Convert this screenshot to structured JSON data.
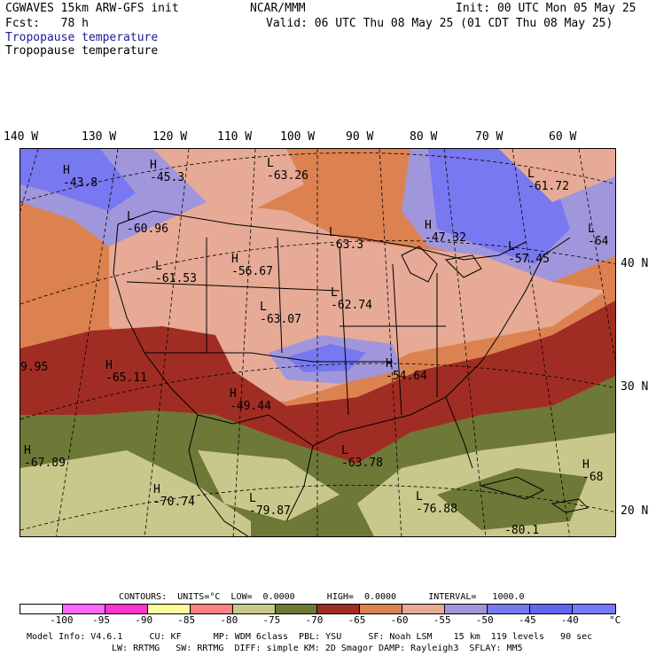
{
  "header": {
    "model": "CGWAVES 15km ARW-GFS init",
    "forecast": "Fcst:   78 h",
    "org": "NCAR/MMM",
    "init": "Init: 00 UTC Mon 05 May 25",
    "valid": "Valid: 06 UTC Thu 08 May 25 (01 CDT Thu 08 May 25)",
    "field_title_1": "Tropopause temperature",
    "field_title_2": "Tropopause temperature"
  },
  "axes": {
    "longitudes": [
      "140 W",
      "130 W",
      "120 W",
      "110 W",
      "100 W",
      "90 W",
      "80 W",
      "70 W",
      "60 W"
    ],
    "latitudes": [
      "40 N",
      "30 N",
      "20 N"
    ]
  },
  "map_labels": [
    {
      "kind": "H",
      "value": "-43.8"
    },
    {
      "kind": "H",
      "value": "-45.3"
    },
    {
      "kind": "L",
      "value": "-63.26"
    },
    {
      "kind": "L",
      "value": "-61.72"
    },
    {
      "kind": "L",
      "value": "-60.96"
    },
    {
      "kind": "L",
      "value": "-63.3"
    },
    {
      "kind": "H",
      "value": "-47.32"
    },
    {
      "kind": "L",
      "value": "-64"
    },
    {
      "kind": "L",
      "value": "-57.45"
    },
    {
      "kind": "L",
      "value": "-61.53"
    },
    {
      "kind": "H",
      "value": "-56.67"
    },
    {
      "kind": "L",
      "value": "-62.74"
    },
    {
      "kind": "L",
      "value": "-63.07"
    },
    {
      "kind": "",
      "value": "9.95"
    },
    {
      "kind": "H",
      "value": "-65.11"
    },
    {
      "kind": "H",
      "value": "-54.64"
    },
    {
      "kind": "H",
      "value": "-49.44"
    },
    {
      "kind": "H",
      "value": "-67.89"
    },
    {
      "kind": "L",
      "value": "-63.78"
    },
    {
      "kind": "H",
      "value": "-68"
    },
    {
      "kind": "H",
      "value": "-70.74"
    },
    {
      "kind": "L",
      "value": "-79.87"
    },
    {
      "kind": "L",
      "value": "-76.88"
    },
    {
      "kind": "",
      "value": "-80.1"
    }
  ],
  "contours": {
    "text": "CONTOURS:  UNITS=°C  LOW=  0.0000      HIGH=  0.0000      INTERVAL=   1000.0"
  },
  "colorbar": {
    "colors": [
      "#ffffff",
      "#ff66ff",
      "#ff33cc",
      "#ffff99",
      "#ff8080",
      "#c8c88c",
      "#6e7837",
      "#a02d23",
      "#dc8250",
      "#e6aa96",
      "#a096dc",
      "#7878f0",
      "#6464f5",
      "#7878ff"
    ],
    "ticks": [
      "-100",
      "-95",
      "-90",
      "-85",
      "-80",
      "-75",
      "-70",
      "-65",
      "-60",
      "-55",
      "-50",
      "-45",
      "-40"
    ],
    "unit": "°C"
  },
  "footer": {
    "line1": "Model Info: V4.6.1     CU: KF      MP: WDM 6class  PBL: YSU     SF: Noah LSM    15 km  119 levels   90 sec",
    "line2": "LW: RRTMG   SW: RRTMG  DIFF: simple KM: 2D Smagor DAMP: Rayleigh3  SFLAY: MM5"
  }
}
